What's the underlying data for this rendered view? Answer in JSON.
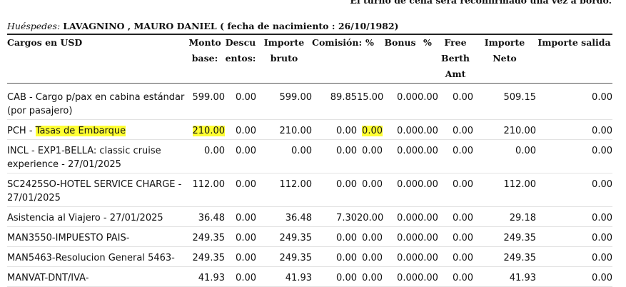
{
  "top_note": "El turno de cena será reconfirmado una vez a bordo.",
  "guest": {
    "label": "Huéspedes:",
    "value": "LAVAGNINO , MAURO DANIEL ( fecha de nacimiento : 26/10/1982)"
  },
  "columns": {
    "cargos": "Cargos en USD",
    "monto": "Monto base:",
    "descuentos": "Descu entos:",
    "bruto": "Importe bruto",
    "comision": "Comisión:",
    "pct1": "%",
    "bonus": "Bonus",
    "pct2": "%",
    "free": "Free Berth Amt",
    "neto": "Importe Neto",
    "salida": "Importe salida"
  },
  "rows": [
    {
      "pre": "CAB - Cargo p/pax en cabina estándar (por pasajero)",
      "hl_desc": "",
      "monto": "599.00",
      "desc": "0.00",
      "bruto": "599.00",
      "comision": "89.85",
      "pct1": "15.00",
      "bonus": "0.00",
      "pct2": "0.00",
      "free": "0.00",
      "neto": "509.15",
      "salida": "0.00"
    },
    {
      "pre": "PCH - ",
      "hl_desc": "Tasas de Embarque",
      "monto": "210.00",
      "desc": "0.00",
      "bruto": "210.00",
      "comision": "0.00",
      "pct1": "0.00",
      "bonus": "0.00",
      "pct2": "0.00",
      "free": "0.00",
      "neto": "210.00",
      "salida": "0.00"
    },
    {
      "pre": "INCL - EXP1-BELLA: classic cruise experience - 27/01/2025",
      "hl_desc": "",
      "monto": "0.00",
      "desc": "0.00",
      "bruto": "0.00",
      "comision": "0.00",
      "pct1": "0.00",
      "bonus": "0.00",
      "pct2": "0.00",
      "free": "0.00",
      "neto": "0.00",
      "salida": "0.00"
    },
    {
      "pre": "SC2425SO-HOTEL SERVICE CHARGE - 27/01/2025",
      "hl_desc": "",
      "monto": "112.00",
      "desc": "0.00",
      "bruto": "112.00",
      "comision": "0.00",
      "pct1": "0.00",
      "bonus": "0.00",
      "pct2": "0.00",
      "free": "0.00",
      "neto": "112.00",
      "salida": "0.00"
    },
    {
      "pre": "Asistencia al Viajero - 27/01/2025",
      "hl_desc": "",
      "monto": "36.48",
      "desc": "0.00",
      "bruto": "36.48",
      "comision": "7.30",
      "pct1": "20.00",
      "bonus": "0.00",
      "pct2": "0.00",
      "free": "0.00",
      "neto": "29.18",
      "salida": "0.00"
    },
    {
      "pre": "MAN3550-IMPUESTO PAIS-",
      "hl_desc": "",
      "monto": "249.35",
      "desc": "0.00",
      "bruto": "249.35",
      "comision": "0.00",
      "pct1": "0.00",
      "bonus": "0.00",
      "pct2": "0.00",
      "free": "0.00",
      "neto": "249.35",
      "salida": "0.00"
    },
    {
      "pre": "MAN5463-Resolucion General 5463-",
      "hl_desc": "",
      "monto": "249.35",
      "desc": "0.00",
      "bruto": "249.35",
      "comision": "0.00",
      "pct1": "0.00",
      "bonus": "0.00",
      "pct2": "0.00",
      "free": "0.00",
      "neto": "249.35",
      "salida": "0.00"
    },
    {
      "pre": "MANVAT-DNT/IVA-",
      "hl_desc": "",
      "monto": "41.93",
      "desc": "0.00",
      "bruto": "41.93",
      "comision": "0.00",
      "pct1": "0.00",
      "bonus": "0.00",
      "pct2": "0.00",
      "free": "0.00",
      "neto": "41.93",
      "salida": "0.00"
    }
  ],
  "highlights": {
    "row_index": 1,
    "cells": [
      "monto",
      "pct1"
    ],
    "color": "#ffff33"
  }
}
